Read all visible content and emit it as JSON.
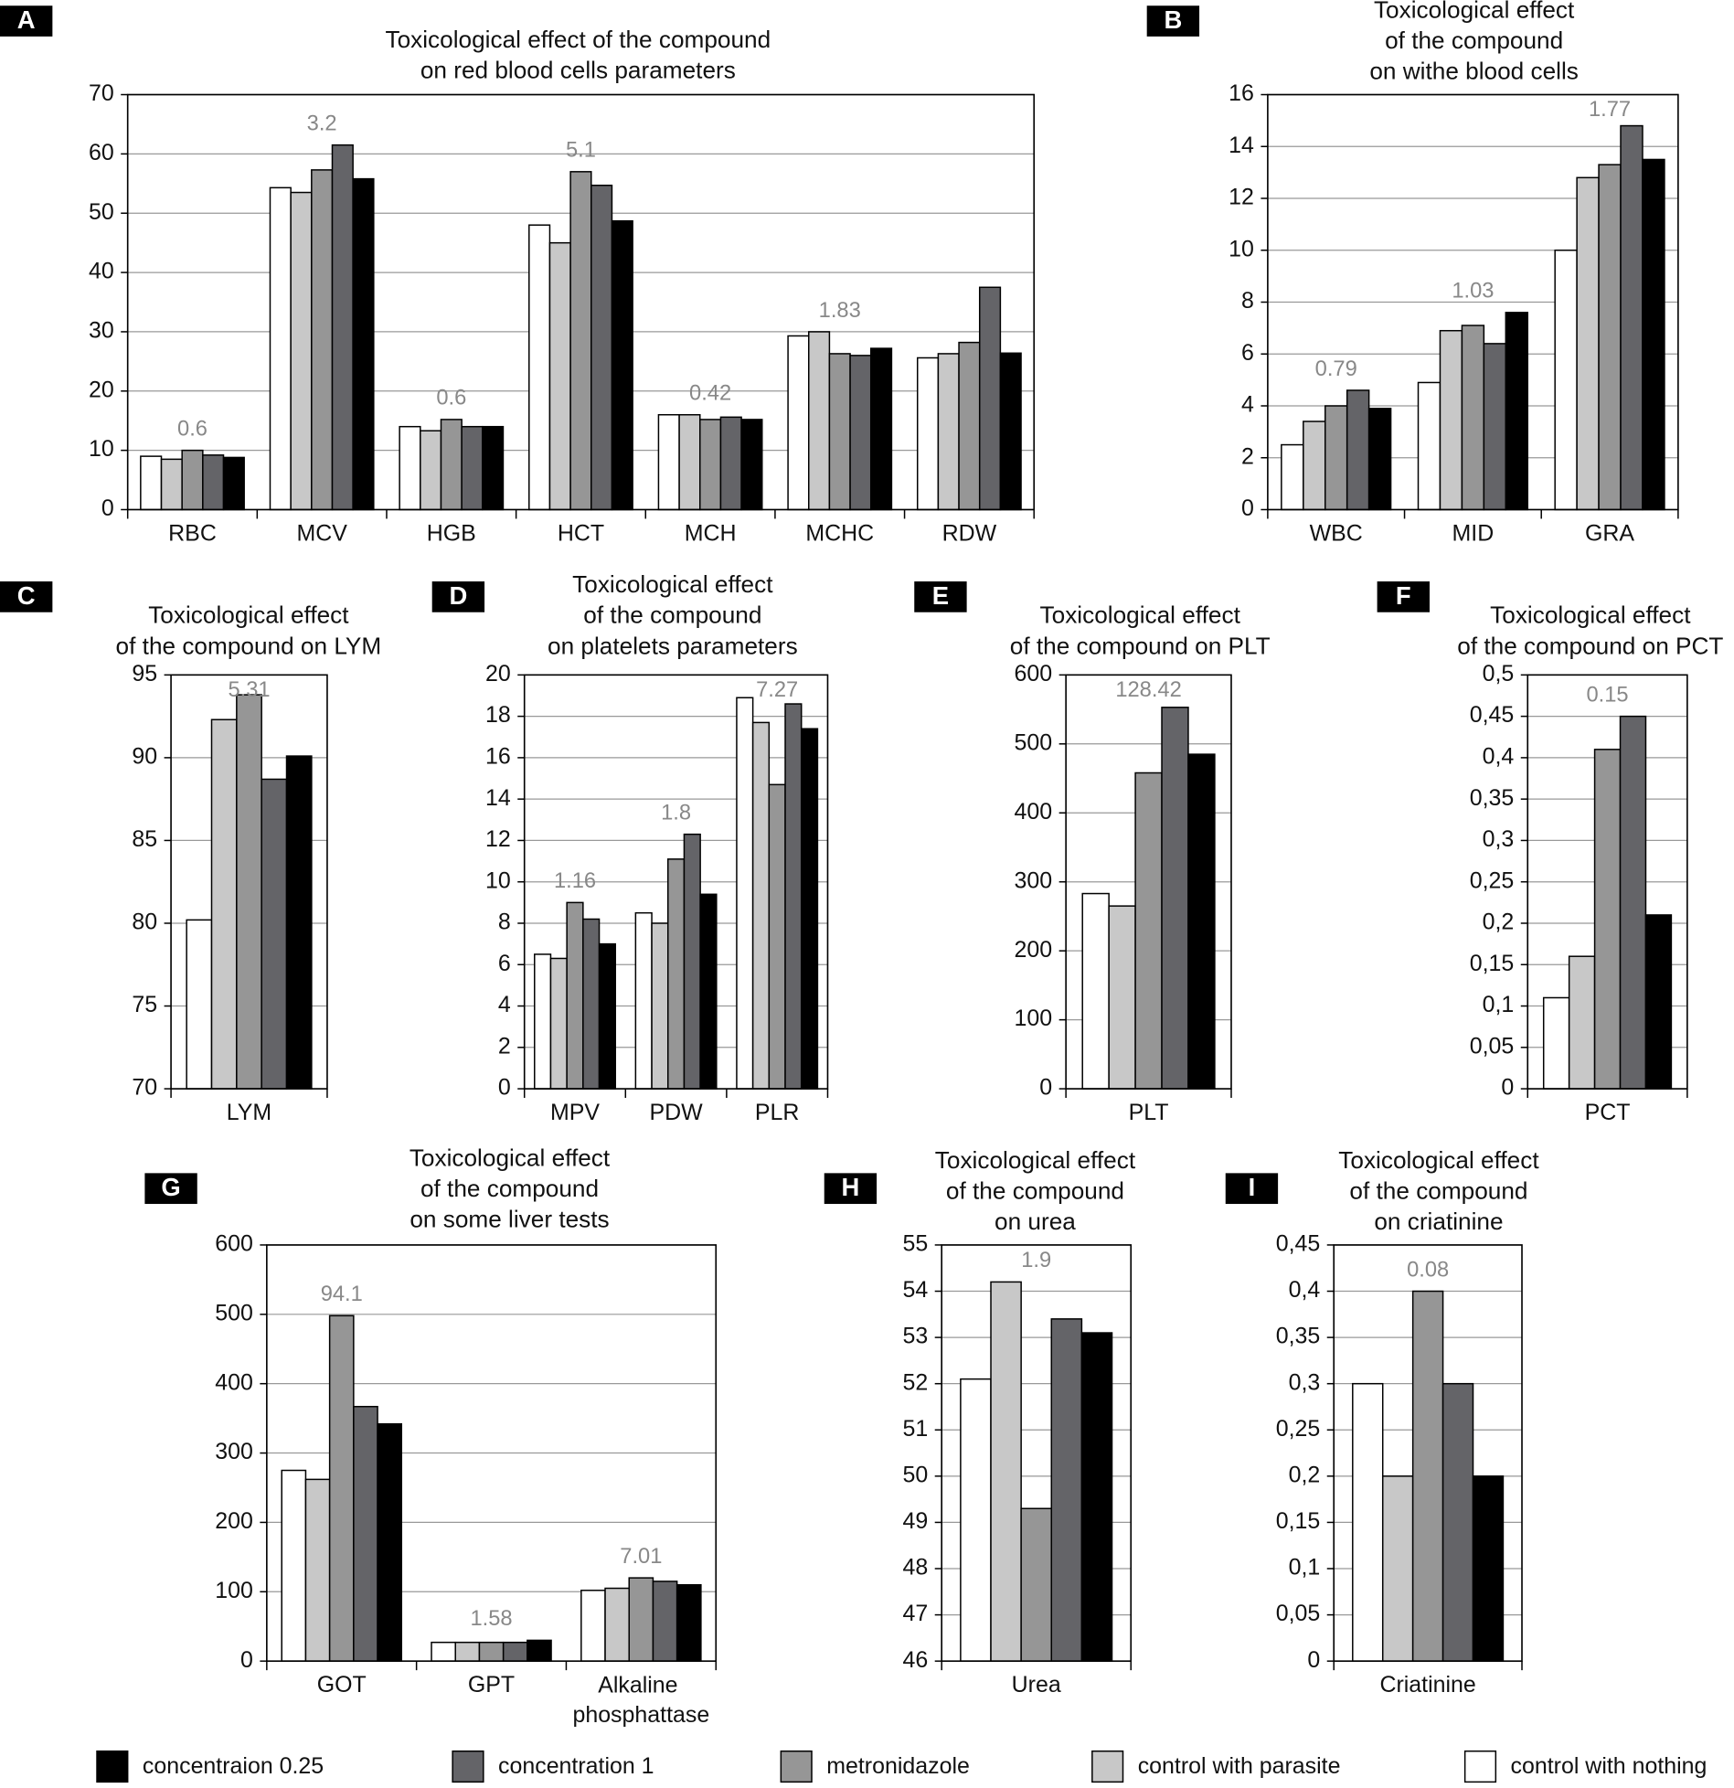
{
  "legend": {
    "series": [
      {
        "name": "control with nothing",
        "color": "#ffffff"
      },
      {
        "name": "control with parasite",
        "color": "#c8c8c8"
      },
      {
        "name": "metronidazole",
        "color": "#969696"
      },
      {
        "name": "concentration 1",
        "color": "#646468"
      },
      {
        "name": "concentraion 0.25",
        "color": "#000000"
      }
    ]
  },
  "chart_data": [
    {
      "type": "bar",
      "panel": "A",
      "title": [
        "Toxicological effect of the compound",
        "on red blood cells parameters"
      ],
      "categories": [
        "RBC",
        "MCV",
        "HGB",
        "HCT",
        "MCH",
        "MCHC",
        "RDW"
      ],
      "annotations": [
        "0.6",
        "3.2",
        "0.6",
        "5.1",
        "0.42",
        "1.83",
        null
      ],
      "series": [
        {
          "values": [
            9,
            54.3,
            14,
            48,
            16,
            29.3,
            25.6
          ]
        },
        {
          "values": [
            8.5,
            53.5,
            13.3,
            45,
            16,
            30,
            26.3
          ]
        },
        {
          "values": [
            10,
            57.3,
            15.2,
            57,
            15.2,
            26.3,
            28.2
          ]
        },
        {
          "values": [
            9.2,
            61.5,
            14,
            54.7,
            15.6,
            26,
            37.5
          ]
        },
        {
          "values": [
            8.8,
            55.8,
            14,
            48.7,
            15.2,
            27.2,
            26.4
          ]
        }
      ],
      "ylim": [
        0,
        70
      ],
      "yticks": [
        0,
        10,
        20,
        30,
        40,
        50,
        60,
        70
      ],
      "grid": true
    },
    {
      "type": "bar",
      "panel": "B",
      "title": [
        "Toxicological effect",
        "of the compound",
        "on withe blood cells"
      ],
      "categories": [
        "WBC",
        "MID",
        "GRA"
      ],
      "annotations": [
        "0.79",
        "1.03",
        "1.77"
      ],
      "series": [
        {
          "values": [
            2.5,
            4.9,
            10
          ]
        },
        {
          "values": [
            3.4,
            6.9,
            12.8
          ]
        },
        {
          "values": [
            4,
            7.1,
            13.3
          ]
        },
        {
          "values": [
            4.6,
            6.4,
            14.8
          ]
        },
        {
          "values": [
            3.9,
            7.6,
            13.5
          ]
        }
      ],
      "ylim": [
        0,
        16
      ],
      "yticks": [
        0,
        2,
        4,
        6,
        8,
        10,
        12,
        14,
        16
      ],
      "grid": true
    },
    {
      "type": "bar",
      "panel": "C",
      "title": [
        "Toxicological effect",
        "of the compound on LYM"
      ],
      "categories": [
        "LYM"
      ],
      "annotations": [
        "5.31"
      ],
      "series": [
        {
          "values": [
            80.2
          ]
        },
        {
          "values": [
            92.3
          ]
        },
        {
          "values": [
            93.8
          ]
        },
        {
          "values": [
            88.7
          ]
        },
        {
          "values": [
            90.1
          ]
        }
      ],
      "ylim": [
        70,
        95
      ],
      "yticks": [
        70,
        75,
        80,
        85,
        90,
        95
      ],
      "grid": true
    },
    {
      "type": "bar",
      "panel": "D",
      "title": [
        "Toxicological effect",
        "of the compound",
        "on platelets parameters"
      ],
      "categories": [
        "MPV",
        "PDW",
        "PLR"
      ],
      "annotations": [
        "1.16",
        "1.8",
        "7.27"
      ],
      "series": [
        {
          "values": [
            6.5,
            8.5,
            18.9
          ]
        },
        {
          "values": [
            6.3,
            8,
            17.7
          ]
        },
        {
          "values": [
            9,
            11.1,
            14.7
          ]
        },
        {
          "values": [
            8.2,
            12.3,
            18.6
          ]
        },
        {
          "values": [
            7,
            9.4,
            17.4
          ]
        }
      ],
      "ylim": [
        0,
        20
      ],
      "yticks": [
        0,
        2,
        4,
        6,
        8,
        10,
        12,
        14,
        16,
        18,
        20
      ],
      "grid": true
    },
    {
      "type": "bar",
      "panel": "E",
      "title": [
        "Toxicological effect",
        "of the compound on PLT"
      ],
      "categories": [
        "PLT"
      ],
      "annotations": [
        "128.42"
      ],
      "series": [
        {
          "values": [
            283
          ]
        },
        {
          "values": [
            265
          ]
        },
        {
          "values": [
            458
          ]
        },
        {
          "values": [
            553
          ]
        },
        {
          "values": [
            485
          ]
        }
      ],
      "ylim": [
        0,
        600
      ],
      "yticks": [
        0,
        100,
        200,
        300,
        400,
        500,
        600
      ],
      "grid": true
    },
    {
      "type": "bar",
      "panel": "F",
      "title": [
        "Toxicological effect",
        "of the compound on PCT"
      ],
      "categories": [
        "PCT"
      ],
      "annotations": [
        "0.15"
      ],
      "series": [
        {
          "values": [
            0.11
          ]
        },
        {
          "values": [
            0.16
          ]
        },
        {
          "values": [
            0.41
          ]
        },
        {
          "values": [
            0.45
          ]
        },
        {
          "values": [
            0.21
          ]
        }
      ],
      "ylim": [
        0,
        0.5
      ],
      "yticks": [
        0,
        {
          "value": 0.05,
          "label": "0,05"
        },
        {
          "value": 0.1,
          "label": "0,1"
        },
        {
          "value": 0.15,
          "label": "0,15"
        },
        {
          "value": 0.2,
          "label": "0,2"
        },
        {
          "value": 0.25,
          "label": "0,25"
        },
        {
          "value": 0.3,
          "label": "0,3"
        },
        {
          "value": 0.35,
          "label": "0,35"
        },
        {
          "value": 0.4,
          "label": "0,4"
        },
        {
          "value": 0.45,
          "label": "0,45"
        },
        {
          "value": 0.5,
          "label": "0,5"
        }
      ],
      "grid": true
    },
    {
      "type": "bar",
      "panel": "G",
      "title": [
        "Toxicological effect",
        "of the compound",
        "on some liver tests"
      ],
      "categories": [
        "GOT",
        "GPT",
        "Alkaline phosphattase"
      ],
      "annotations": [
        "94.1",
        "1.58",
        "7.01"
      ],
      "series": [
        {
          "values": [
            275,
            27,
            102
          ]
        },
        {
          "values": [
            262,
            27,
            105
          ]
        },
        {
          "values": [
            498,
            27,
            120
          ]
        },
        {
          "values": [
            367,
            27,
            115
          ]
        },
        {
          "values": [
            342,
            30,
            110
          ]
        }
      ],
      "ylim": [
        0,
        600
      ],
      "yticks": [
        0,
        100,
        200,
        300,
        400,
        500,
        600
      ],
      "grid": true
    },
    {
      "type": "bar",
      "panel": "H",
      "title": [
        "Toxicological effect",
        "of the compound",
        "on urea"
      ],
      "categories": [
        "Urea"
      ],
      "annotations": [
        "1.9"
      ],
      "series": [
        {
          "values": [
            52.1
          ]
        },
        {
          "values": [
            54.2
          ]
        },
        {
          "values": [
            49.3
          ]
        },
        {
          "values": [
            53.4
          ]
        },
        {
          "values": [
            53.1
          ]
        }
      ],
      "ylim": [
        46,
        55
      ],
      "yticks": [
        46,
        47,
        48,
        49,
        50,
        51,
        52,
        53,
        54,
        55
      ],
      "grid": true
    },
    {
      "type": "bar",
      "panel": "I",
      "title": [
        "Toxicological effect",
        "of the compound",
        "on criatinine"
      ],
      "categories": [
        "Criatinine"
      ],
      "annotations": [
        "0.08"
      ],
      "series": [
        {
          "values": [
            0.3
          ]
        },
        {
          "values": [
            0.2
          ]
        },
        {
          "values": [
            0.4
          ]
        },
        {
          "values": [
            0.3
          ]
        },
        {
          "values": [
            0.2
          ]
        }
      ],
      "ylim": [
        0,
        0.45
      ],
      "yticks": [
        0,
        {
          "value": 0.05,
          "label": "0,05"
        },
        {
          "value": 0.1,
          "label": "0,1"
        },
        {
          "value": 0.15,
          "label": "0,15"
        },
        {
          "value": 0.2,
          "label": "0,2"
        },
        {
          "value": 0.25,
          "label": "0,25"
        },
        {
          "value": 0.3,
          "label": "0,3"
        },
        {
          "value": 0.35,
          "label": "0,35"
        },
        {
          "value": 0.4,
          "label": "0,4"
        },
        {
          "value": 0.45,
          "label": "0,45"
        }
      ],
      "grid": true
    }
  ]
}
